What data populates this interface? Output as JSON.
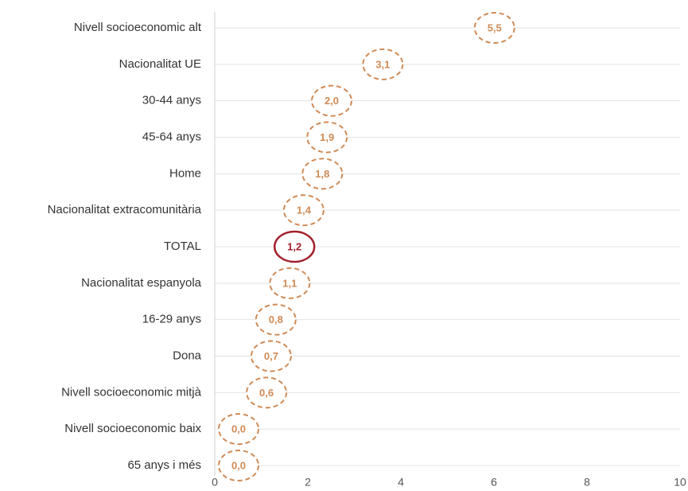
{
  "chart_data": {
    "type": "dot",
    "categories": [
      "Nivell socioeconomic alt",
      "Nacionalitat UE",
      "30-44 anys",
      "45-64 anys",
      "Home",
      "Nacionalitat extracomunitària",
      "TOTAL",
      "Nacionalitat espanyola",
      "16-29 anys",
      "Dona",
      "Nivell socioeconomic mitjà",
      "Nivell socioeconomic baix",
      "65 anys i més"
    ],
    "values": [
      5.5,
      3.1,
      2.0,
      1.9,
      1.8,
      1.4,
      1.2,
      1.1,
      0.8,
      0.7,
      0.6,
      0.0,
      0.0
    ],
    "value_labels": [
      "5,5",
      "3,1",
      "2,0",
      "1,9",
      "1,8",
      "1,4",
      "1,2",
      "1,1",
      "0,8",
      "0,7",
      "0,6",
      "0,0",
      "0,0"
    ],
    "point_colors": [
      "#d08a55",
      "#d08a55",
      "#d08a55",
      "#d08a55",
      "#d08a55",
      "#d08a55",
      "#a3222e",
      "#d08a55",
      "#d08a55",
      "#d08a55",
      "#d08a55",
      "#d08a55",
      "#d08a55"
    ],
    "point_styles": [
      "dashed",
      "dashed",
      "dashed",
      "dashed",
      "dashed",
      "dashed",
      "solid",
      "dashed",
      "dashed",
      "dashed",
      "dashed",
      "dashed",
      "dashed"
    ],
    "xlim": [
      0,
      10
    ],
    "xticks": [
      0,
      2,
      4,
      6,
      8,
      10
    ],
    "grid": true
  }
}
